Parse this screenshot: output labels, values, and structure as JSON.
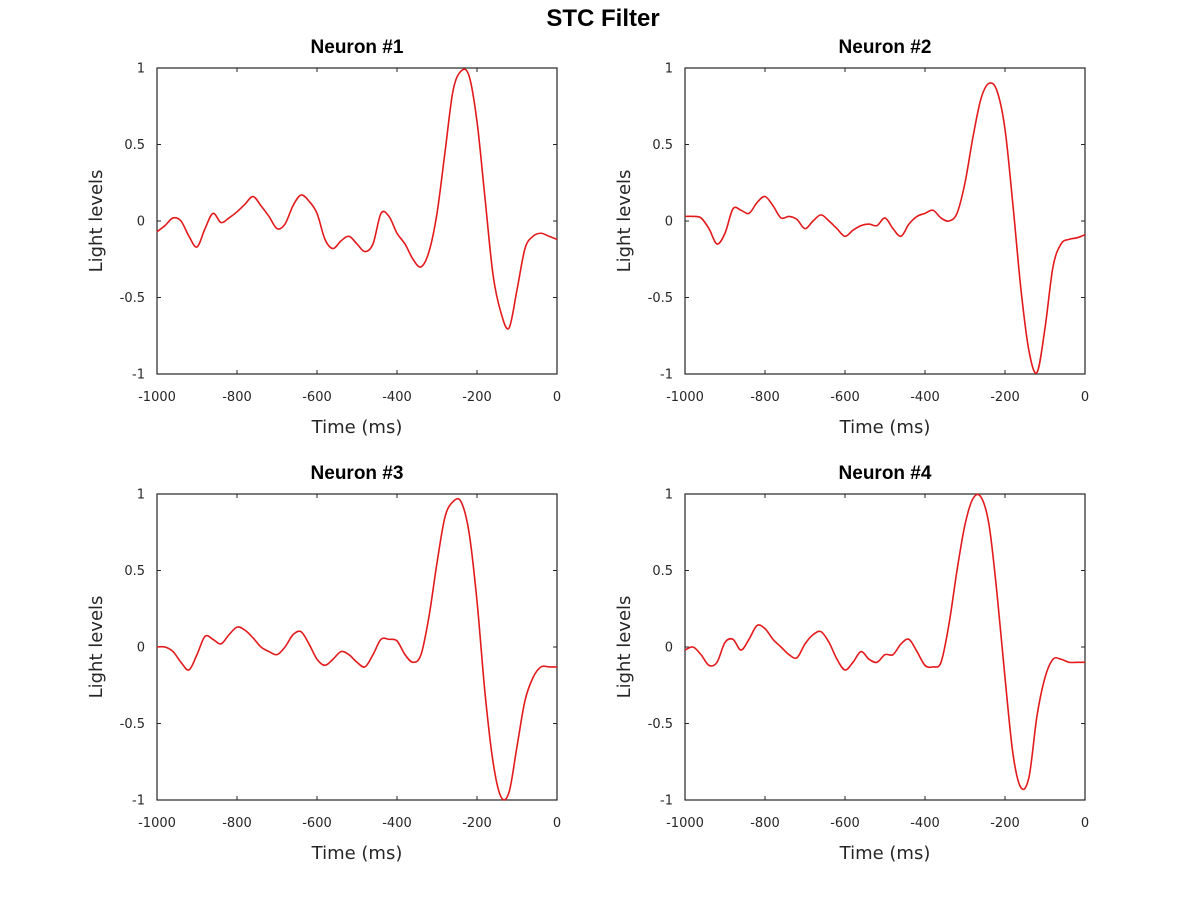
{
  "suptitle": "STC Filter",
  "colors": {
    "series": "#e31a1c",
    "axis": "#262626"
  },
  "chart_data": [
    {
      "type": "line",
      "title": "Neuron #1",
      "xlabel": "Time (ms)",
      "ylabel": "Light levels",
      "xlim": [
        -1000,
        0
      ],
      "ylim": [
        -1,
        1
      ],
      "xticks": [
        -1000,
        -800,
        -600,
        -400,
        -200,
        0
      ],
      "yticks": [
        -1,
        -0.5,
        0,
        0.5,
        1
      ],
      "xtick_labels": [
        "-1000",
        "-800",
        "-600",
        "-400",
        "-200",
        "0"
      ],
      "ytick_labels": [
        "-1",
        "-0.5",
        "0",
        "0.5",
        "1"
      ],
      "grid": false,
      "x": [
        -1000,
        -980,
        -960,
        -940,
        -920,
        -900,
        -880,
        -860,
        -840,
        -820,
        -800,
        -780,
        -760,
        -740,
        -720,
        -700,
        -680,
        -660,
        -640,
        -620,
        -600,
        -580,
        -560,
        -540,
        -520,
        -500,
        -480,
        -460,
        -440,
        -420,
        -400,
        -380,
        -360,
        -340,
        -320,
        -300,
        -280,
        -260,
        -240,
        -220,
        -200,
        -180,
        -160,
        -140,
        -120,
        -100,
        -80,
        -60,
        -40,
        -20,
        0
      ],
      "y": [
        -0.07,
        -0.03,
        0.02,
        0,
        -0.1,
        -0.17,
        -0.05,
        0.05,
        -0.01,
        0.02,
        0.06,
        0.11,
        0.16,
        0.1,
        0.03,
        -0.05,
        -0.02,
        0.1,
        0.17,
        0.13,
        0.05,
        -0.12,
        -0.18,
        -0.13,
        -0.1,
        -0.15,
        -0.2,
        -0.15,
        0.05,
        0.03,
        -0.08,
        -0.15,
        -0.25,
        -0.3,
        -0.2,
        0.05,
        0.45,
        0.85,
        0.98,
        0.95,
        0.65,
        0.15,
        -0.35,
        -0.6,
        -0.7,
        -0.45,
        -0.18,
        -0.1,
        -0.08,
        -0.1,
        -0.12
      ]
    },
    {
      "type": "line",
      "title": "Neuron #2",
      "xlabel": "Time (ms)",
      "ylabel": "Light levels",
      "xlim": [
        -1000,
        0
      ],
      "ylim": [
        -1,
        1
      ],
      "xticks": [
        -1000,
        -800,
        -600,
        -400,
        -200,
        0
      ],
      "yticks": [
        -1,
        -0.5,
        0,
        0.5,
        1
      ],
      "xtick_labels": [
        "-1000",
        "-800",
        "-600",
        "-400",
        "-200",
        "0"
      ],
      "ytick_labels": [
        "-1",
        "-0.5",
        "0",
        "0.5",
        "1"
      ],
      "grid": false,
      "x": [
        -1000,
        -980,
        -960,
        -940,
        -920,
        -900,
        -880,
        -860,
        -840,
        -820,
        -800,
        -780,
        -760,
        -740,
        -720,
        -700,
        -680,
        -660,
        -640,
        -620,
        -600,
        -580,
        -560,
        -540,
        -520,
        -500,
        -480,
        -460,
        -440,
        -420,
        -400,
        -380,
        -360,
        -340,
        -320,
        -300,
        -280,
        -260,
        -240,
        -220,
        -200,
        -180,
        -160,
        -140,
        -120,
        -100,
        -80,
        -60,
        -40,
        -20,
        0
      ],
      "y": [
        0.03,
        0.03,
        0.02,
        -0.05,
        -0.15,
        -0.08,
        0.08,
        0.07,
        0.05,
        0.12,
        0.16,
        0.1,
        0.02,
        0.03,
        0.01,
        -0.05,
        0,
        0.04,
        0,
        -0.05,
        -0.1,
        -0.06,
        -0.03,
        -0.02,
        -0.03,
        0.02,
        -0.05,
        -0.1,
        -0.02,
        0.03,
        0.05,
        0.07,
        0.02,
        0,
        0.05,
        0.25,
        0.55,
        0.8,
        0.9,
        0.85,
        0.6,
        0.1,
        -0.45,
        -0.85,
        -0.99,
        -0.7,
        -0.3,
        -0.15,
        -0.12,
        -0.11,
        -0.09
      ]
    },
    {
      "type": "line",
      "title": "Neuron #3",
      "xlabel": "Time (ms)",
      "ylabel": "Light levels",
      "xlim": [
        -1000,
        0
      ],
      "ylim": [
        -1,
        1
      ],
      "xticks": [
        -1000,
        -800,
        -600,
        -400,
        -200,
        0
      ],
      "yticks": [
        -1,
        -0.5,
        0,
        0.5,
        1
      ],
      "xtick_labels": [
        "-1000",
        "-800",
        "-600",
        "-400",
        "-200",
        "0"
      ],
      "ytick_labels": [
        "-1",
        "-0.5",
        "0",
        "0.5",
        "1"
      ],
      "grid": false,
      "x": [
        -1000,
        -980,
        -960,
        -940,
        -920,
        -900,
        -880,
        -860,
        -840,
        -820,
        -800,
        -780,
        -760,
        -740,
        -720,
        -700,
        -680,
        -660,
        -640,
        -620,
        -600,
        -580,
        -560,
        -540,
        -520,
        -500,
        -480,
        -460,
        -440,
        -420,
        -400,
        -380,
        -360,
        -340,
        -320,
        -300,
        -280,
        -260,
        -240,
        -220,
        -200,
        -180,
        -160,
        -140,
        -120,
        -100,
        -80,
        -60,
        -40,
        -20,
        0
      ],
      "y": [
        0,
        0,
        -0.03,
        -0.1,
        -0.15,
        -0.05,
        0.07,
        0.05,
        0.02,
        0.08,
        0.13,
        0.11,
        0.06,
        0,
        -0.03,
        -0.05,
        0,
        0.08,
        0.1,
        0.02,
        -0.08,
        -0.12,
        -0.08,
        -0.03,
        -0.05,
        -0.1,
        -0.13,
        -0.05,
        0.05,
        0.05,
        0.04,
        -0.05,
        -0.1,
        -0.05,
        0.2,
        0.55,
        0.85,
        0.95,
        0.95,
        0.75,
        0.3,
        -0.3,
        -0.75,
        -0.98,
        -0.95,
        -0.65,
        -0.35,
        -0.2,
        -0.13,
        -0.13,
        -0.13
      ]
    },
    {
      "type": "line",
      "title": "Neuron #4",
      "xlabel": "Time (ms)",
      "ylabel": "Light levels",
      "xlim": [
        -1000,
        0
      ],
      "ylim": [
        -1,
        1
      ],
      "xticks": [
        -1000,
        -800,
        -600,
        -400,
        -200,
        0
      ],
      "yticks": [
        -1,
        -0.5,
        0,
        0.5,
        1
      ],
      "xtick_labels": [
        "-1000",
        "-800",
        "-600",
        "-400",
        "-200",
        "0"
      ],
      "ytick_labels": [
        "-1",
        "-0.5",
        "0",
        "0.5",
        "1"
      ],
      "grid": false,
      "x": [
        -1000,
        -980,
        -960,
        -940,
        -920,
        -900,
        -880,
        -860,
        -840,
        -820,
        -800,
        -780,
        -760,
        -740,
        -720,
        -700,
        -680,
        -660,
        -640,
        -620,
        -600,
        -580,
        -560,
        -540,
        -520,
        -500,
        -480,
        -460,
        -440,
        -420,
        -400,
        -380,
        -360,
        -340,
        -320,
        -300,
        -280,
        -260,
        -240,
        -220,
        -200,
        -180,
        -160,
        -140,
        -120,
        -100,
        -80,
        -60,
        -40,
        -20,
        0
      ],
      "y": [
        -0.02,
        0,
        -0.05,
        -0.12,
        -0.1,
        0.03,
        0.05,
        -0.02,
        0.05,
        0.14,
        0.12,
        0.05,
        0,
        -0.05,
        -0.07,
        0.02,
        0.08,
        0.1,
        0.03,
        -0.08,
        -0.15,
        -0.1,
        -0.03,
        -0.08,
        -0.1,
        -0.05,
        -0.05,
        0.02,
        0.05,
        -0.03,
        -0.12,
        -0.13,
        -0.1,
        0.15,
        0.5,
        0.8,
        0.97,
        0.98,
        0.8,
        0.35,
        -0.2,
        -0.7,
        -0.92,
        -0.85,
        -0.45,
        -0.2,
        -0.08,
        -0.08,
        -0.1,
        -0.1,
        -0.1
      ]
    }
  ]
}
